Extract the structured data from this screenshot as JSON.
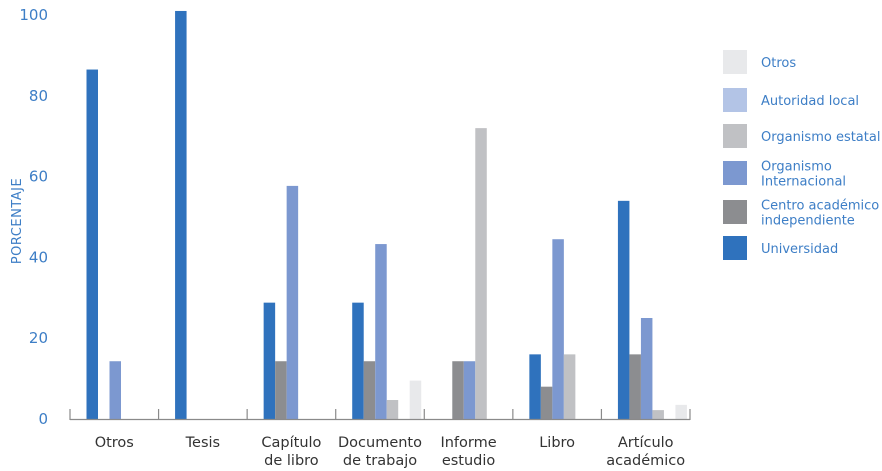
{
  "chart_data": {
    "type": "bar",
    "ylabel": "PORCENTAJE",
    "xlabel": "",
    "ylim": [
      0,
      100
    ],
    "yticks": [
      0,
      20,
      40,
      60,
      80,
      100
    ],
    "categories": [
      [
        "Otros"
      ],
      [
        "Tesis"
      ],
      [
        "Capítulo",
        "de libro"
      ],
      [
        "Documento",
        "de trabajo"
      ],
      [
        "Informe",
        "estudio"
      ],
      [
        "Libro"
      ],
      [
        "Artículo",
        "académico"
      ]
    ],
    "series": [
      {
        "name": "Universidad",
        "color": "#2f72bd",
        "values": [
          86.5,
          101,
          28.8,
          28.8,
          0,
          16,
          54
        ]
      },
      {
        "name": "Centro académico independiente",
        "color": "#8c8d90",
        "values": [
          0,
          0,
          14.3,
          14.3,
          14.3,
          8,
          16
        ]
      },
      {
        "name": "Organismo Internacional",
        "color": "#7c98d0",
        "values": [
          14.3,
          0,
          57.7,
          43.3,
          14.3,
          44.5,
          25
        ]
      },
      {
        "name": "Organismo estatal",
        "color": "#c0c1c4",
        "values": [
          0,
          0,
          0,
          4.7,
          72,
          16,
          2.2
        ]
      },
      {
        "name": "Autoridad local",
        "color": "#b3c4e6",
        "values": [
          0,
          0,
          0,
          0,
          0,
          0,
          0
        ]
      },
      {
        "name": "Otros",
        "color": "#e8e9eb",
        "values": [
          0,
          0,
          0,
          9.5,
          0,
          0,
          3.5
        ]
      }
    ],
    "legend": {
      "placement": "right",
      "order": [
        "Otros",
        "Autoridad local",
        "Organismo estatal",
        "Organismo Internacional",
        "Centro académico independiente",
        "Universidad"
      ],
      "lines": [
        [
          "Otros"
        ],
        [
          "Autoridad local"
        ],
        [
          "Organismo estatal"
        ],
        [
          "Organismo",
          "Internacional"
        ],
        [
          "Centro académico",
          "independiente"
        ],
        [
          "Universidad"
        ]
      ]
    },
    "grid": false
  }
}
